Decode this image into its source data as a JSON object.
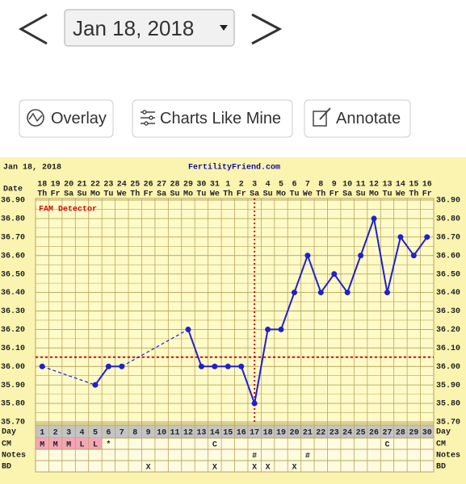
{
  "nav": {
    "date": "Jan 18, 2018"
  },
  "buttons": [
    "Overlay",
    "Charts Like Mine",
    "Annotate"
  ],
  "chart_data": {
    "type": "line",
    "header_date": "Jan 18, 2018",
    "site": "FertilityFriend.com",
    "date_label": "Date",
    "detector_label": "FAM Detector",
    "categories": [
      18,
      19,
      20,
      21,
      22,
      23,
      24,
      25,
      26,
      27,
      28,
      29,
      30,
      31,
      1,
      2,
      3,
      4,
      5,
      6,
      7,
      8,
      9,
      10,
      11,
      12,
      13,
      14,
      15,
      16
    ],
    "weekdays": [
      "Th",
      "Fr",
      "Sa",
      "Su",
      "Mo",
      "Tu",
      "We",
      "Th",
      "Fr",
      "Sa",
      "Su",
      "Mo",
      "Tu",
      "We",
      "Th",
      "Fr",
      "Sa",
      "Su",
      "Mo",
      "Tu",
      "We",
      "Th",
      "Fr",
      "Sa",
      "Su",
      "Mo",
      "Tu",
      "We",
      "Th",
      "Fr"
    ],
    "values": [
      36.0,
      null,
      null,
      null,
      35.9,
      36.0,
      36.0,
      null,
      null,
      null,
      null,
      36.2,
      36.0,
      36.0,
      36.0,
      36.0,
      35.8,
      36.2,
      36.2,
      36.4,
      36.6,
      36.4,
      36.5,
      36.4,
      36.6,
      36.8,
      36.4,
      36.7,
      36.6,
      36.7
    ],
    "color": "#2020d0",
    "ylim": [
      35.7,
      36.9
    ],
    "yticks": [
      {
        "value": 36.9,
        "label": "36.90"
      },
      {
        "value": 36.8,
        "label": "36.80"
      },
      {
        "value": 36.7,
        "label": "36.70"
      },
      {
        "value": 36.6,
        "label": "36.60"
      },
      {
        "value": 36.5,
        "label": "36.50"
      },
      {
        "value": 36.4,
        "label": "36.40"
      },
      {
        "value": 36.3,
        "label": "36.30"
      },
      {
        "value": 36.2,
        "label": "36.20"
      },
      {
        "value": 36.1,
        "label": "36.10"
      },
      {
        "value": 36.0,
        "label": "36.00"
      },
      {
        "value": 35.9,
        "label": "35.90"
      },
      {
        "value": 35.8,
        "label": "35.80"
      },
      {
        "value": 35.7,
        "label": "35.70"
      }
    ],
    "minor_yticks": [
      36.85,
      36.75,
      36.65,
      36.55,
      36.45,
      36.35,
      36.25,
      36.15,
      36.05,
      35.95,
      35.85,
      35.75
    ],
    "grid": true,
    "coverline": 36.05,
    "ovulation_day": 17,
    "day_label": "Day",
    "days": [
      1,
      2,
      3,
      4,
      5,
      6,
      7,
      8,
      9,
      10,
      11,
      12,
      13,
      14,
      15,
      16,
      17,
      18,
      19,
      20,
      21,
      22,
      23,
      24,
      25,
      26,
      27,
      28,
      29,
      30
    ],
    "cm_label": "CM",
    "cm": [
      "M",
      "M",
      "M",
      "L",
      "L",
      "*",
      null,
      null,
      null,
      null,
      null,
      null,
      null,
      "C",
      null,
      null,
      null,
      null,
      null,
      null,
      null,
      null,
      null,
      null,
      null,
      null,
      "C",
      null,
      null,
      null
    ],
    "notes_label": "Notes",
    "notes": [
      null,
      null,
      null,
      null,
      null,
      null,
      null,
      null,
      null,
      null,
      null,
      null,
      null,
      null,
      null,
      null,
      "#",
      null,
      null,
      null,
      "#",
      null,
      null,
      null,
      null,
      null,
      null,
      null,
      null,
      null
    ],
    "bd_label": "BD",
    "bd": [
      null,
      null,
      null,
      null,
      null,
      null,
      null,
      null,
      "X",
      null,
      null,
      null,
      null,
      "X",
      null,
      null,
      "X",
      "X",
      null,
      "X",
      null,
      null,
      null,
      null,
      null,
      null,
      null,
      null,
      null,
      null
    ]
  }
}
